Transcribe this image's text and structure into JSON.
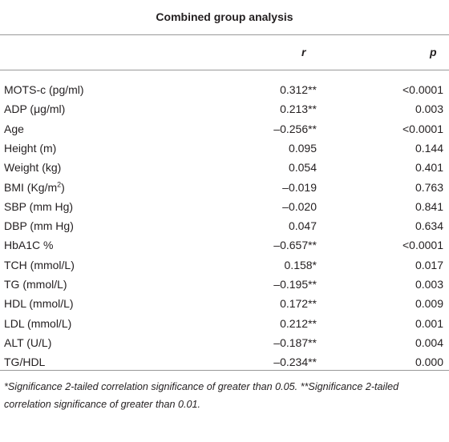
{
  "table": {
    "title": "Combined group analysis",
    "headers": [
      "r",
      "p"
    ],
    "rows": [
      [
        "MOTS-c (pg/ml)",
        "0.312**",
        "<0.0001"
      ],
      [
        "ADP (μg/ml)",
        "0.213**",
        "0.003"
      ],
      [
        "Age",
        "–0.256**",
        "<0.0001"
      ],
      [
        "Height (m)",
        "0.095",
        "0.144"
      ],
      [
        "Weight (kg)",
        "0.054",
        "0.401"
      ],
      [
        {
          "before": "BMI (Kg/m",
          "sup": "2",
          "after": ")"
        },
        "–0.019",
        "0.763"
      ],
      [
        "SBP (mm Hg)",
        "–0.020",
        "0.841"
      ],
      [
        "DBP (mm Hg)",
        "0.047",
        "0.634"
      ],
      [
        "HbA1C %",
        "–0.657**",
        "<0.0001"
      ],
      [
        "TCH (mmol/L)",
        "0.158*",
        "0.017"
      ],
      [
        "TG (mmol/L)",
        "–0.195**",
        "0.003"
      ],
      [
        "HDL (mmol/L)",
        "0.172**",
        "0.009"
      ],
      [
        "LDL (mmol/L)",
        "0.212**",
        "0.001"
      ],
      [
        "ALT (U/L)",
        "–0.187**",
        "0.004"
      ],
      [
        "TG/HDL",
        "–0.234**",
        "0.000"
      ]
    ],
    "footnote": "*Significance 2-tailed correlation significance of greater than 0.05. **Significance 2-tailed correlation significance of greater than 0.01."
  }
}
